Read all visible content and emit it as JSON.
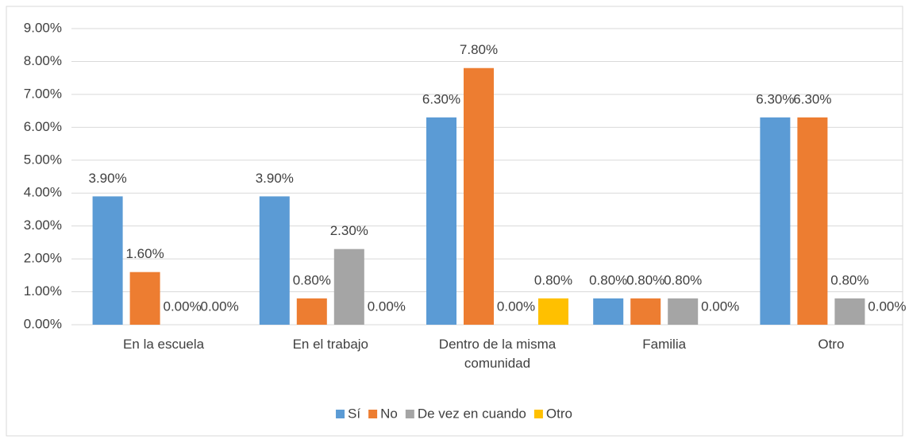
{
  "chart_data": {
    "type": "bar",
    "categories": [
      "En la escuela",
      "En el trabajo",
      "Dentro de la misma comunidad",
      "Familia",
      "Otro"
    ],
    "series": [
      {
        "name": "Sí",
        "color": "#5b9bd5",
        "values": [
          3.9,
          3.9,
          6.3,
          0.8,
          6.3
        ],
        "value_labels": [
          "3.90%",
          "3.90%",
          "6.30%",
          "0.80%",
          "6.30%"
        ]
      },
      {
        "name": "No",
        "color": "#ed7d31",
        "values": [
          1.6,
          0.8,
          7.8,
          0.8,
          6.3
        ],
        "value_labels": [
          "1.60%",
          "0.80%",
          "7.80%",
          "0.80%",
          "6.30%"
        ]
      },
      {
        "name": "De vez en cuando",
        "color": "#a5a5a5",
        "values": [
          0,
          2.3,
          0,
          0.8,
          0.8
        ],
        "value_labels": [
          "0.00%",
          "2.30%",
          "0.00%",
          "0.80%",
          "0.80%"
        ]
      },
      {
        "name": "Otro",
        "color": "#ffc000",
        "values": [
          0,
          0,
          0.8,
          0,
          0
        ],
        "value_labels": [
          "0.00%",
          "0.00%",
          "0.80%",
          "0.00%",
          "0.00%"
        ]
      }
    ],
    "ylim": [
      0,
      9
    ],
    "yticks": [
      {
        "value": 0,
        "label": "0.00%"
      },
      {
        "value": 1,
        "label": "1.00%"
      },
      {
        "value": 2,
        "label": "2.00%"
      },
      {
        "value": 3,
        "label": "3.00%"
      },
      {
        "value": 4,
        "label": "4.00%"
      },
      {
        "value": 5,
        "label": "5.00%"
      },
      {
        "value": 6,
        "label": "6.00%"
      },
      {
        "value": 7,
        "label": "7.00%"
      },
      {
        "value": 8,
        "label": "8.00%"
      },
      {
        "value": 9,
        "label": "9.00%"
      }
    ],
    "grid": true,
    "legend": "bottom"
  }
}
